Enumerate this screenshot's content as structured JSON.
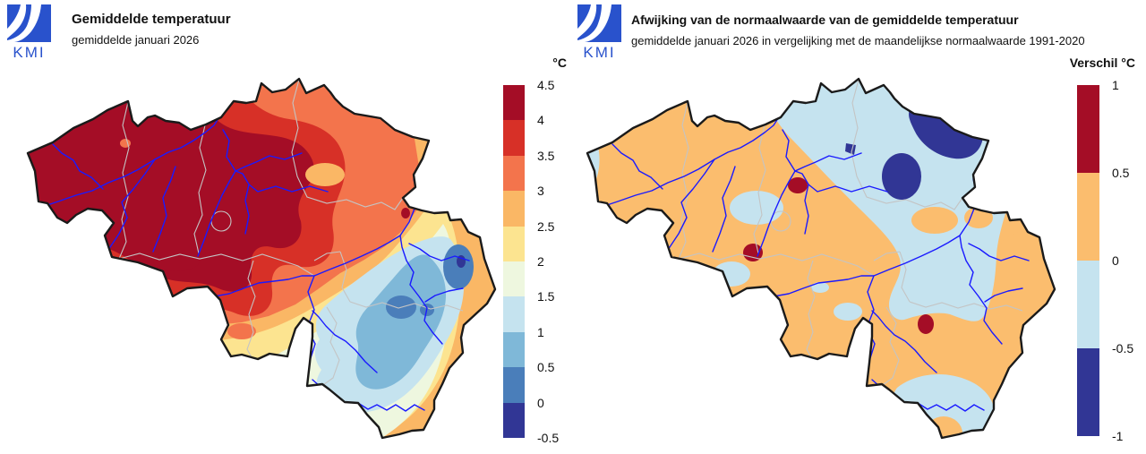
{
  "panels": {
    "left": {
      "logo_text": "KMI",
      "title": "Gemiddelde temperatuur",
      "subtitle": "gemiddelde januari 2026",
      "legend": {
        "title": "°C",
        "tick_labels": [
          "4.5",
          "4",
          "3.5",
          "3",
          "2.5",
          "2",
          "1.5",
          "1",
          "0.5",
          "0",
          "-0.5"
        ],
        "segment_colors": [
          "#A40D26",
          "#D73027",
          "#F3744C",
          "#FAB765",
          "#FCE490",
          "#EEF7DF",
          "#C5E3EF",
          "#7FB8D8",
          "#4A7EBA",
          "#313695"
        ]
      }
    },
    "right": {
      "logo_text": "KMI",
      "title": "Afwijking van de normaalwaarde van de gemiddelde temperatuur",
      "subtitle": "gemiddelde januari 2026 in vergelijking met de maandelijkse normaalwaarde 1991-2020",
      "legend": {
        "title": "Verschil °C",
        "tick_labels": [
          "1",
          "0.5",
          "0",
          "-0.5",
          "-1"
        ],
        "segment_colors": [
          "#A40D26",
          "#FBBD6E",
          "#C5E3EF",
          "#313695"
        ]
      }
    }
  },
  "palette": {
    "dark_red": "#A40D26",
    "red": "#D73027",
    "orange": "#F3744C",
    "light_orange": "#FAB765",
    "light_orange_right": "#FBBD6E",
    "pale_yellow": "#FCE490",
    "pale_green": "#EEF7DF",
    "light_blue": "#C5E3EF",
    "mid_blue": "#7FB8D8",
    "blue": "#4A7EBA",
    "dark_blue": "#313695",
    "river": "#1A1AFF",
    "province_border": "#C4C4C4",
    "country_border": "#1A1A1A",
    "logo_blue": "#2952CC",
    "text": "#111111",
    "background": "#FFFFFF"
  }
}
